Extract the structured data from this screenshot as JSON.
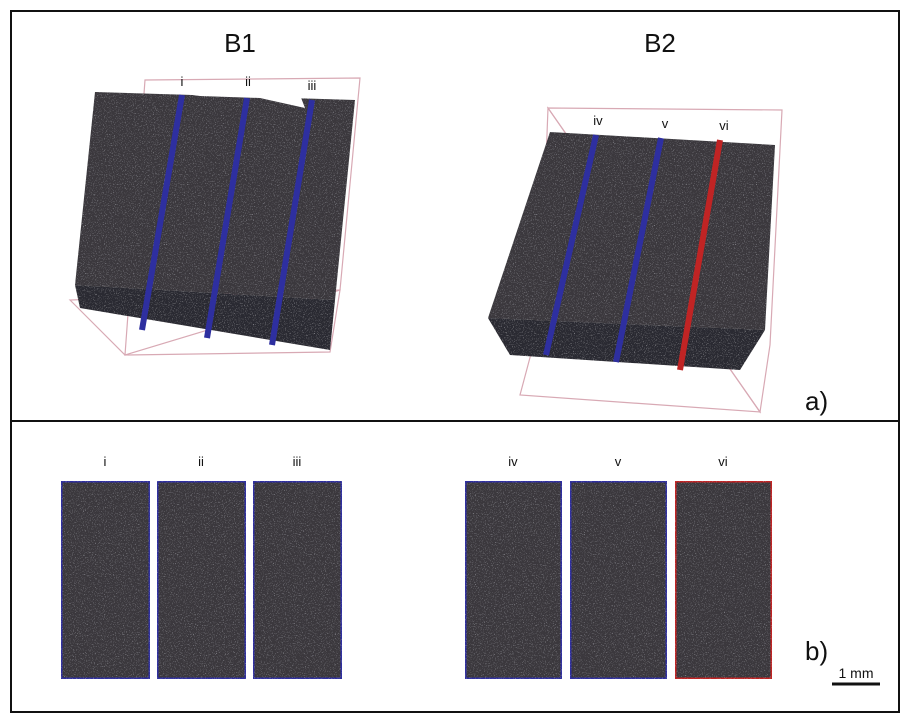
{
  "panel_a": {
    "label": "a)",
    "blocks": [
      {
        "title": "B1",
        "slices": [
          "i",
          "ii",
          "iii"
        ]
      },
      {
        "title": "B2",
        "slices": [
          "iv",
          "v",
          "vi"
        ]
      }
    ]
  },
  "panel_b": {
    "label": "b)",
    "slices": [
      "i",
      "ii",
      "iii",
      "iv",
      "v",
      "vi"
    ]
  },
  "scale_bar": "1 mm"
}
